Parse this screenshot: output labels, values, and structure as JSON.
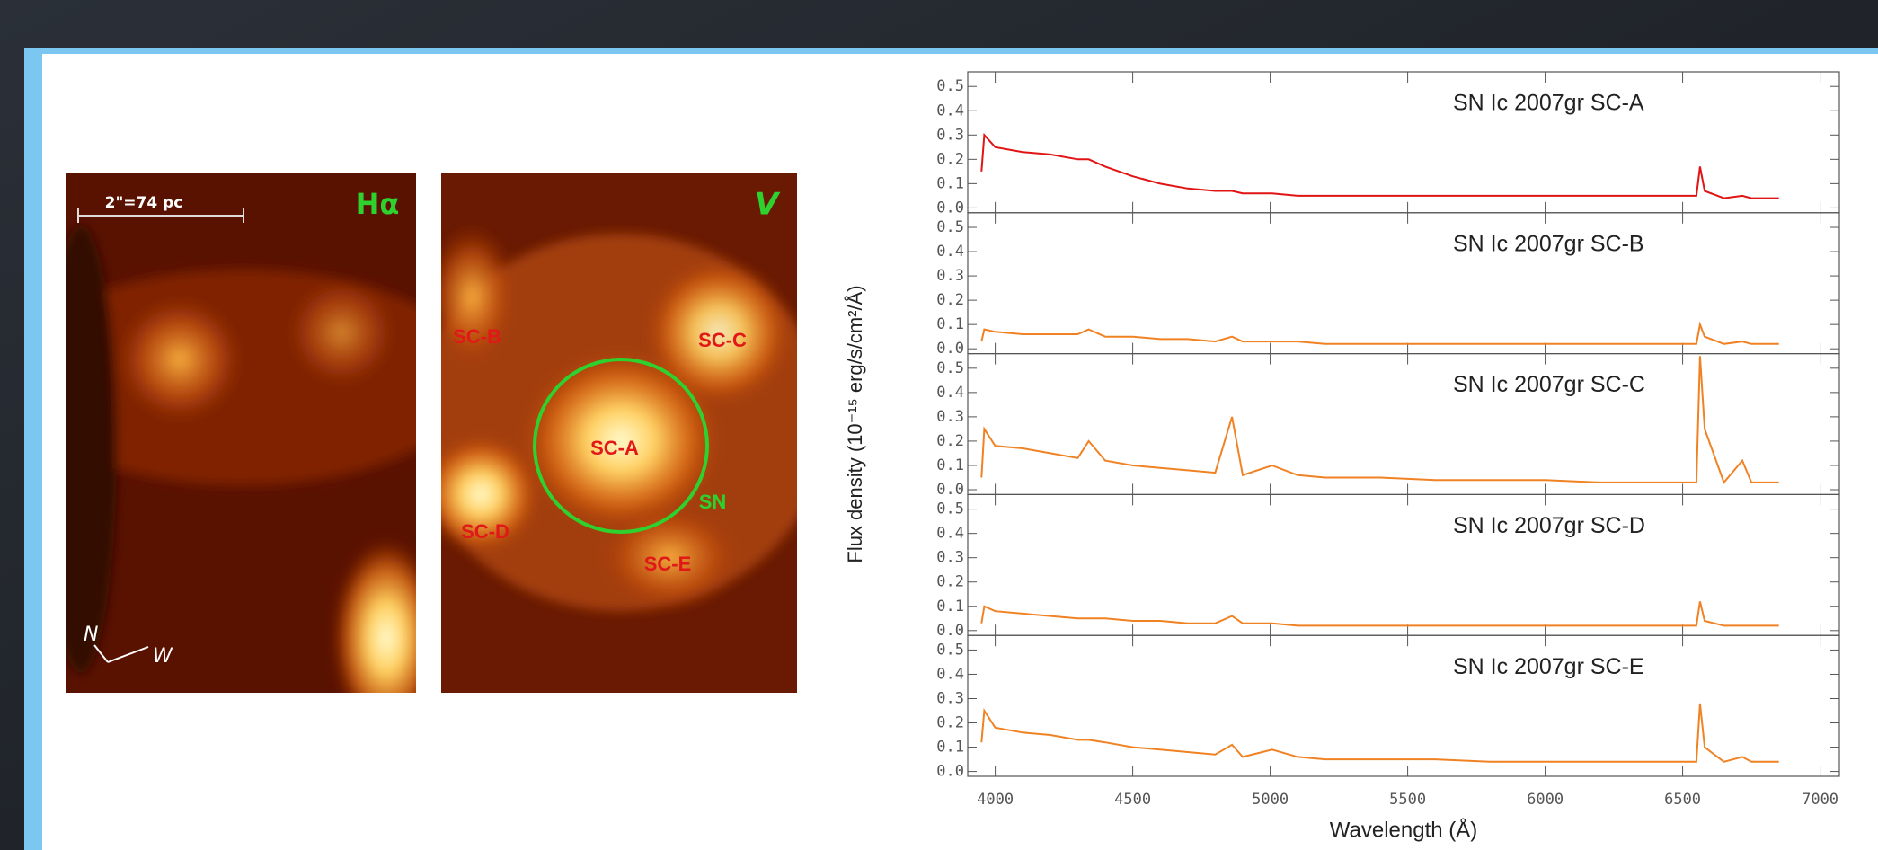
{
  "images": {
    "halpha": {
      "scale": "2\"=74 pc",
      "band": "Hα",
      "north": "N",
      "west": "W"
    },
    "v": {
      "band": "V",
      "labels": [
        "SC-B",
        "SC-C",
        "SC-A",
        "SC-D",
        "SC-E",
        "SN"
      ]
    }
  },
  "chart_data": [
    {
      "type": "line",
      "title": "SN Ic 2007gr SC-A",
      "ylabel": "Flux density (10⁻¹⁵ erg/s/cm²/Å)",
      "x": [
        3950,
        3960,
        4000,
        4100,
        4200,
        4300,
        4340,
        4400,
        4500,
        4600,
        4700,
        4800,
        4861,
        4900,
        5007,
        5100,
        5200,
        5400,
        5600,
        5800,
        6000,
        6200,
        6400,
        6550,
        6563,
        6580,
        6650,
        6717,
        6750,
        6850
      ],
      "series": [
        {
          "color": "#e01414",
          "values": [
            0.15,
            0.3,
            0.25,
            0.23,
            0.22,
            0.2,
            0.2,
            0.17,
            0.13,
            0.1,
            0.08,
            0.07,
            0.07,
            0.06,
            0.06,
            0.05,
            0.05,
            0.05,
            0.05,
            0.05,
            0.05,
            0.05,
            0.05,
            0.05,
            0.17,
            0.07,
            0.04,
            0.05,
            0.04,
            0.04
          ]
        }
      ],
      "xlim": [
        3900,
        7070
      ],
      "xticks": [
        4000,
        4500,
        5000,
        5500,
        6000,
        6500,
        7000
      ],
      "ylim": [
        -0.02,
        0.56
      ],
      "yticks": [
        {
          "value": 0,
          "label": "0.0"
        },
        0.1,
        0.2,
        0.3,
        0.4,
        0.5
      ]
    },
    {
      "type": "line",
      "title": "SN Ic 2007gr SC-B",
      "x": [
        3950,
        3960,
        4000,
        4100,
        4200,
        4300,
        4340,
        4400,
        4500,
        4600,
        4700,
        4800,
        4861,
        4900,
        5007,
        5100,
        5200,
        5400,
        5600,
        5800,
        6000,
        6200,
        6400,
        6550,
        6563,
        6580,
        6650,
        6717,
        6750,
        6850
      ],
      "series": [
        {
          "color": "#f08224",
          "values": [
            0.03,
            0.08,
            0.07,
            0.06,
            0.06,
            0.06,
            0.08,
            0.05,
            0.05,
            0.04,
            0.04,
            0.03,
            0.05,
            0.03,
            0.03,
            0.03,
            0.02,
            0.02,
            0.02,
            0.02,
            0.02,
            0.02,
            0.02,
            0.02,
            0.1,
            0.05,
            0.02,
            0.03,
            0.02,
            0.02
          ]
        }
      ],
      "xlim": [
        3900,
        7070
      ],
      "xticks": [
        4000,
        4500,
        5000,
        5500,
        6000,
        6500,
        7000
      ],
      "ylim": [
        -0.02,
        0.56
      ],
      "yticks": [
        {
          "value": 0,
          "label": "0.0"
        },
        0.1,
        0.2,
        0.3,
        0.4,
        0.5
      ]
    },
    {
      "type": "line",
      "title": "SN Ic 2007gr SC-C",
      "x": [
        3950,
        3960,
        4000,
        4100,
        4200,
        4300,
        4340,
        4400,
        4500,
        4600,
        4700,
        4800,
        4861,
        4900,
        5007,
        5100,
        5200,
        5400,
        5600,
        5800,
        6000,
        6200,
        6400,
        6550,
        6563,
        6580,
        6650,
        6717,
        6750,
        6850
      ],
      "series": [
        {
          "color": "#f08224",
          "values": [
            0.05,
            0.25,
            0.18,
            0.17,
            0.15,
            0.13,
            0.2,
            0.12,
            0.1,
            0.09,
            0.08,
            0.07,
            0.3,
            0.06,
            0.1,
            0.06,
            0.05,
            0.05,
            0.04,
            0.04,
            0.04,
            0.03,
            0.03,
            0.03,
            0.55,
            0.25,
            0.03,
            0.12,
            0.03,
            0.03
          ]
        }
      ],
      "xlim": [
        3900,
        7070
      ],
      "xticks": [
        4000,
        4500,
        5000,
        5500,
        6000,
        6500,
        7000
      ],
      "ylim": [
        -0.02,
        0.56
      ],
      "yticks": [
        {
          "value": 0,
          "label": "0.0"
        },
        0.1,
        0.2,
        0.3,
        0.4,
        0.5
      ]
    },
    {
      "type": "line",
      "title": "SN Ic 2007gr SC-D",
      "x": [
        3950,
        3960,
        4000,
        4100,
        4200,
        4300,
        4340,
        4400,
        4500,
        4600,
        4700,
        4800,
        4861,
        4900,
        5007,
        5100,
        5200,
        5400,
        5600,
        5800,
        6000,
        6200,
        6400,
        6550,
        6563,
        6580,
        6650,
        6717,
        6750,
        6850
      ],
      "series": [
        {
          "color": "#f08224",
          "values": [
            0.03,
            0.1,
            0.08,
            0.07,
            0.06,
            0.05,
            0.05,
            0.05,
            0.04,
            0.04,
            0.03,
            0.03,
            0.06,
            0.03,
            0.03,
            0.02,
            0.02,
            0.02,
            0.02,
            0.02,
            0.02,
            0.02,
            0.02,
            0.02,
            0.12,
            0.04,
            0.02,
            0.02,
            0.02,
            0.02
          ]
        }
      ],
      "xlim": [
        3900,
        7070
      ],
      "xticks": [
        4000,
        4500,
        5000,
        5500,
        6000,
        6500,
        7000
      ],
      "ylim": [
        -0.02,
        0.56
      ],
      "yticks": [
        {
          "value": 0,
          "label": "0.0"
        },
        0.1,
        0.2,
        0.3,
        0.4,
        0.5
      ]
    },
    {
      "type": "line",
      "title": "SN Ic 2007gr SC-E",
      "xlabel": "Wavelength (Å)",
      "x": [
        3950,
        3960,
        4000,
        4100,
        4200,
        4300,
        4340,
        4400,
        4500,
        4600,
        4700,
        4800,
        4861,
        4900,
        5007,
        5100,
        5200,
        5400,
        5600,
        5800,
        6000,
        6200,
        6400,
        6550,
        6563,
        6580,
        6650,
        6717,
        6750,
        6850
      ],
      "series": [
        {
          "color": "#f08224",
          "values": [
            0.12,
            0.25,
            0.18,
            0.16,
            0.15,
            0.13,
            0.13,
            0.12,
            0.1,
            0.09,
            0.08,
            0.07,
            0.11,
            0.06,
            0.09,
            0.06,
            0.05,
            0.05,
            0.05,
            0.04,
            0.04,
            0.04,
            0.04,
            0.04,
            0.28,
            0.1,
            0.04,
            0.06,
            0.04,
            0.04
          ]
        }
      ],
      "xlim": [
        3900,
        7070
      ],
      "xticks": [
        4000,
        4500,
        5000,
        5500,
        6000,
        6500,
        7000
      ],
      "ylim": [
        -0.02,
        0.56
      ],
      "yticks": [
        {
          "value": 0,
          "label": "0.0"
        },
        0.1,
        0.2,
        0.3,
        0.4,
        0.5
      ]
    }
  ]
}
